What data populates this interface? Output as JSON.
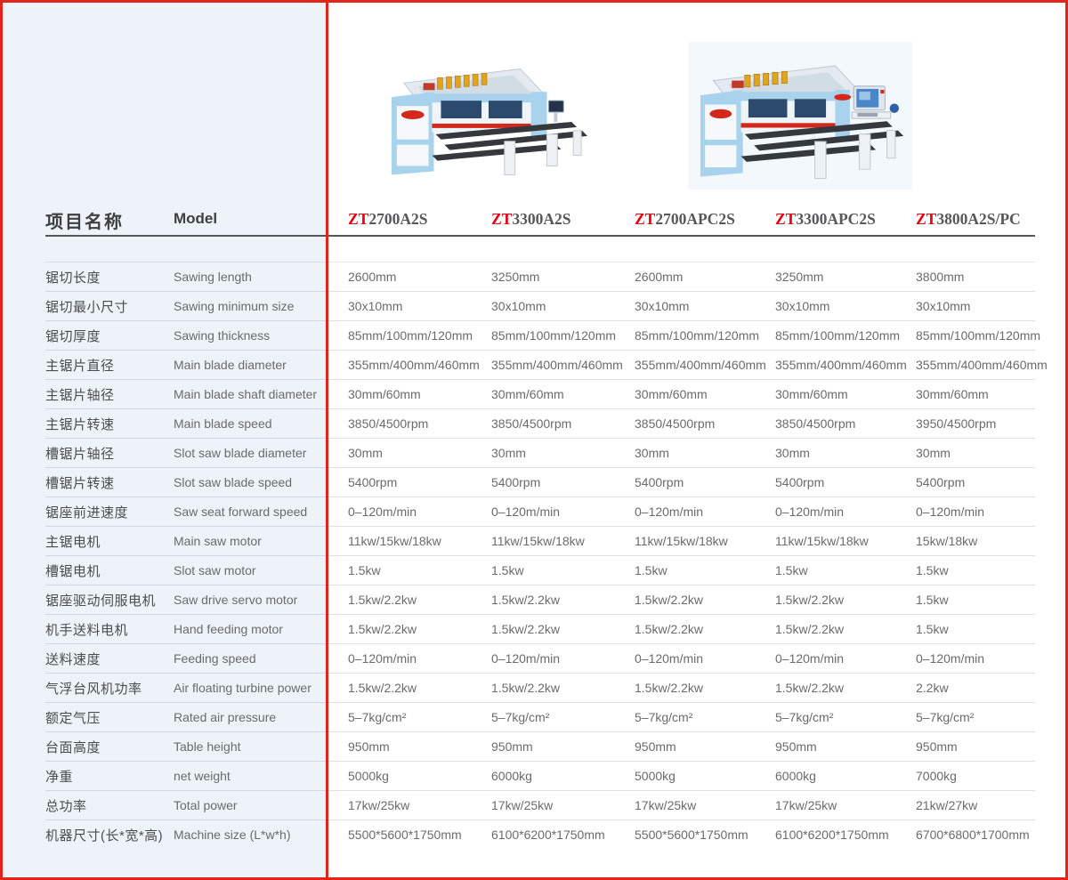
{
  "colors": {
    "accent_red": "#e1251c",
    "brand_red": "#e60012",
    "panel_blue": "#edf3f9",
    "machine_body_blue": "#a9d2ec",
    "table_dark_gray": "#35393d"
  },
  "header": {
    "title_cn": "项目名称",
    "title_en": "Model",
    "models": [
      {
        "prefix": "ZT",
        "name": "2700A2S"
      },
      {
        "prefix": "ZT",
        "name": "3300A2S"
      },
      {
        "prefix": "ZT",
        "name": "2700APC2S"
      },
      {
        "prefix": "ZT",
        "name": "3300APC2S"
      },
      {
        "prefix": "ZT",
        "name": "3800A2S/PC"
      }
    ]
  },
  "images": [
    {
      "icon": "panel-saw-machine-icon"
    },
    {
      "icon": "panel-saw-machine-with-computer-icon"
    }
  ],
  "table": {
    "rows": [
      {
        "cn": "锯切长度",
        "en": "Sawing length",
        "values": [
          "2600mm",
          "3250mm",
          "2600mm",
          "3250mm",
          "3800mm"
        ]
      },
      {
        "cn": "锯切最小尺寸",
        "en": "Sawing minimum size",
        "values": [
          "30x10mm",
          "30x10mm",
          "30x10mm",
          "30x10mm",
          "30x10mm"
        ]
      },
      {
        "cn": "锯切厚度",
        "en": "Sawing thickness",
        "values": [
          "85mm/100mm/120mm",
          "85mm/100mm/120mm",
          "85mm/100mm/120mm",
          "85mm/100mm/120mm",
          "85mm/100mm/120mm"
        ]
      },
      {
        "cn": "主锯片直径",
        "en": "Main blade diameter",
        "values": [
          "355mm/400mm/460mm",
          "355mm/400mm/460mm",
          "355mm/400mm/460mm",
          "355mm/400mm/460mm",
          "355mm/400mm/460mm"
        ]
      },
      {
        "cn": "主锯片轴径",
        "en": "Main blade shaft diameter",
        "values": [
          "30mm/60mm",
          "30mm/60mm",
          "30mm/60mm",
          "30mm/60mm",
          "30mm/60mm"
        ]
      },
      {
        "cn": "主锯片转速",
        "en": "Main blade speed",
        "values": [
          "3850/4500rpm",
          "3850/4500rpm",
          "3850/4500rpm",
          "3850/4500rpm",
          "3950/4500rpm"
        ]
      },
      {
        "cn": "槽锯片轴径",
        "en": "Slot saw blade diameter",
        "values": [
          "30mm",
          "30mm",
          "30mm",
          "30mm",
          "30mm"
        ]
      },
      {
        "cn": "槽锯片转速",
        "en": "Slot saw blade speed",
        "values": [
          "5400rpm",
          "5400rpm",
          "5400rpm",
          "5400rpm",
          "5400rpm"
        ]
      },
      {
        "cn": "锯座前进速度",
        "en": "Saw seat forward speed",
        "values": [
          "0–120m/min",
          "0–120m/min",
          "0–120m/min",
          "0–120m/min",
          "0–120m/min"
        ]
      },
      {
        "cn": "主锯电机",
        "en": "Main saw motor",
        "values": [
          "11kw/15kw/18kw",
          "11kw/15kw/18kw",
          "11kw/15kw/18kw",
          "11kw/15kw/18kw",
          "15kw/18kw"
        ]
      },
      {
        "cn": "槽锯电机",
        "en": "Slot saw motor",
        "values": [
          "1.5kw",
          "1.5kw",
          "1.5kw",
          "1.5kw",
          "1.5kw"
        ]
      },
      {
        "cn": "锯座驱动伺服电机",
        "en": "Saw drive servo motor",
        "values": [
          "1.5kw/2.2kw",
          "1.5kw/2.2kw",
          "1.5kw/2.2kw",
          "1.5kw/2.2kw",
          "1.5kw"
        ]
      },
      {
        "cn": "机手送料电机",
        "en": "Hand feeding motor",
        "values": [
          "1.5kw/2.2kw",
          "1.5kw/2.2kw",
          "1.5kw/2.2kw",
          "1.5kw/2.2kw",
          "1.5kw"
        ]
      },
      {
        "cn": "送料速度",
        "en": "Feeding speed",
        "values": [
          "0–120m/min",
          "0–120m/min",
          "0–120m/min",
          "0–120m/min",
          "0–120m/min"
        ]
      },
      {
        "cn": "气浮台风机功率",
        "en": "Air floating turbine power",
        "values": [
          "1.5kw/2.2kw",
          "1.5kw/2.2kw",
          "1.5kw/2.2kw",
          "1.5kw/2.2kw",
          "2.2kw"
        ]
      },
      {
        "cn": "额定气压",
        "en": "Rated air pressure",
        "values": [
          "5–7kg/cm²",
          "5–7kg/cm²",
          "5–7kg/cm²",
          "5–7kg/cm²",
          "5–7kg/cm²"
        ]
      },
      {
        "cn": "台面高度",
        "en": "Table height",
        "values": [
          "950mm",
          "950mm",
          "950mm",
          "950mm",
          "950mm"
        ]
      },
      {
        "cn": "净重",
        "en": "net weight",
        "values": [
          "5000kg",
          "6000kg",
          "5000kg",
          "6000kg",
          "7000kg"
        ]
      },
      {
        "cn": "总功率",
        "en": "Total power",
        "values": [
          "17kw/25kw",
          "17kw/25kw",
          "17kw/25kw",
          "17kw/25kw",
          "21kw/27kw"
        ]
      },
      {
        "cn": "机器尺寸(长*宽*高)",
        "en": "Machine size (L*w*h)",
        "values": [
          "5500*5600*1750mm",
          "6100*6200*1750mm",
          "5500*5600*1750mm",
          "6100*6200*1750mm",
          "6700*6800*1700mm"
        ]
      }
    ]
  }
}
